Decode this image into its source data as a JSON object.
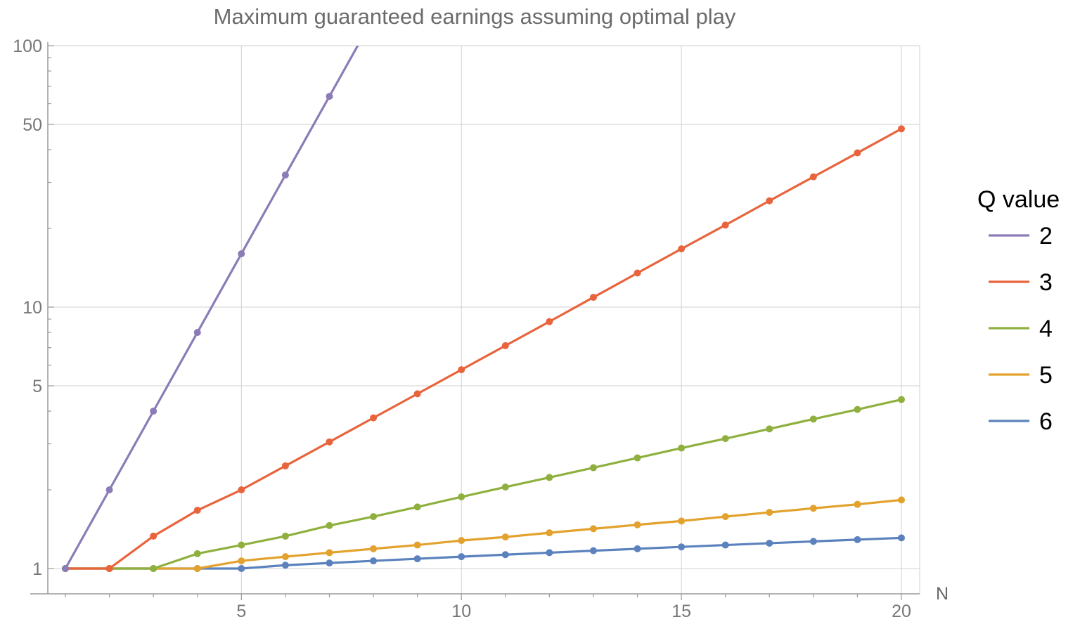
{
  "chart_data": {
    "type": "line",
    "title": "Maximum guaranteed earnings assuming optimal play",
    "xlabel": "N",
    "ylabel": "",
    "y_scale": "log",
    "xlim": [
      0.6,
      20.4
    ],
    "ylim": [
      0.78,
      100
    ],
    "x_ticks": [
      5,
      10,
      15,
      20
    ],
    "y_ticks": [
      1,
      5,
      10,
      50,
      100
    ],
    "grid": true,
    "markers": true,
    "legend": {
      "title": "Q value",
      "placement": "right"
    },
    "series": [
      {
        "name": "2",
        "color": "#8B7CB8",
        "points": [
          [
            1,
            1
          ],
          [
            2,
            2
          ],
          [
            3,
            4
          ],
          [
            4,
            8
          ],
          [
            5,
            16
          ],
          [
            6,
            32
          ],
          [
            7,
            64
          ],
          [
            8,
            128
          ]
        ]
      },
      {
        "name": "3",
        "color": "#E8643C",
        "points": [
          [
            1,
            1
          ],
          [
            2,
            1
          ],
          [
            3,
            1.33
          ],
          [
            4,
            1.67
          ],
          [
            5,
            2
          ],
          [
            6,
            2.47
          ],
          [
            7,
            3.05
          ],
          [
            8,
            3.77
          ],
          [
            9,
            4.66
          ],
          [
            10,
            5.76
          ],
          [
            11,
            7.12
          ],
          [
            12,
            8.8
          ],
          [
            13,
            10.9
          ],
          [
            14,
            13.5
          ],
          [
            15,
            16.7
          ],
          [
            16,
            20.6
          ],
          [
            17,
            25.5
          ],
          [
            18,
            31.5
          ],
          [
            19,
            38.9
          ],
          [
            20,
            48.1
          ]
        ]
      },
      {
        "name": "4",
        "color": "#8FB03E",
        "points": [
          [
            1,
            1
          ],
          [
            2,
            1
          ],
          [
            3,
            1
          ],
          [
            4,
            1.14
          ],
          [
            5,
            1.23
          ],
          [
            6,
            1.33
          ],
          [
            7,
            1.46
          ],
          [
            8,
            1.58
          ],
          [
            9,
            1.72
          ],
          [
            10,
            1.88
          ],
          [
            11,
            2.05
          ],
          [
            12,
            2.23
          ],
          [
            13,
            2.43
          ],
          [
            14,
            2.65
          ],
          [
            15,
            2.89
          ],
          [
            16,
            3.14
          ],
          [
            17,
            3.42
          ],
          [
            18,
            3.73
          ],
          [
            19,
            4.06
          ],
          [
            20,
            4.43
          ]
        ]
      },
      {
        "name": "5",
        "color": "#E2A22D",
        "points": [
          [
            1,
            1
          ],
          [
            2,
            1
          ],
          [
            3,
            1
          ],
          [
            4,
            1
          ],
          [
            5,
            1.07
          ],
          [
            6,
            1.11
          ],
          [
            7,
            1.15
          ],
          [
            8,
            1.19
          ],
          [
            9,
            1.23
          ],
          [
            10,
            1.28
          ],
          [
            11,
            1.32
          ],
          [
            12,
            1.37
          ],
          [
            13,
            1.42
          ],
          [
            14,
            1.47
          ],
          [
            15,
            1.52
          ],
          [
            16,
            1.58
          ],
          [
            17,
            1.64
          ],
          [
            18,
            1.7
          ],
          [
            19,
            1.76
          ],
          [
            20,
            1.83
          ]
        ]
      },
      {
        "name": "6",
        "color": "#5B82BD",
        "points": [
          [
            1,
            1
          ],
          [
            2,
            1
          ],
          [
            3,
            1
          ],
          [
            4,
            1
          ],
          [
            5,
            1
          ],
          [
            6,
            1.03
          ],
          [
            7,
            1.05
          ],
          [
            8,
            1.07
          ],
          [
            9,
            1.09
          ],
          [
            10,
            1.11
          ],
          [
            11,
            1.13
          ],
          [
            12,
            1.15
          ],
          [
            13,
            1.17
          ],
          [
            14,
            1.19
          ],
          [
            15,
            1.21
          ],
          [
            16,
            1.23
          ],
          [
            17,
            1.25
          ],
          [
            18,
            1.27
          ],
          [
            19,
            1.29
          ],
          [
            20,
            1.31
          ]
        ]
      }
    ]
  }
}
